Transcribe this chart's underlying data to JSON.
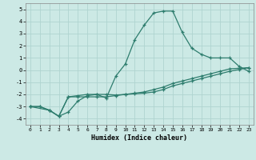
{
  "xlabel": "Humidex (Indice chaleur)",
  "background_color": "#cce9e5",
  "grid_color": "#b0d4d0",
  "line_color": "#2e7d6e",
  "xlim": [
    -0.5,
    23.5
  ],
  "ylim": [
    -4.5,
    5.5
  ],
  "yticks": [
    -4,
    -3,
    -2,
    -1,
    0,
    1,
    2,
    3,
    4,
    5
  ],
  "xticks": [
    0,
    1,
    2,
    3,
    4,
    5,
    6,
    7,
    8,
    9,
    10,
    11,
    12,
    13,
    14,
    15,
    16,
    17,
    18,
    19,
    20,
    21,
    22,
    23
  ],
  "line1_x": [
    0,
    1,
    2,
    3,
    4,
    5,
    6,
    7,
    8,
    9,
    10,
    11,
    12,
    13,
    14,
    15,
    16,
    17,
    18,
    19,
    20,
    21,
    22,
    23
  ],
  "line1_y": [
    -3.0,
    -3.0,
    -3.3,
    -3.8,
    -2.2,
    -2.1,
    -2.0,
    -2.0,
    -2.3,
    -0.5,
    0.5,
    2.5,
    3.7,
    4.7,
    4.85,
    4.85,
    3.1,
    1.8,
    1.3,
    1.0,
    1.0,
    1.0,
    0.3,
    -0.1
  ],
  "line2_x": [
    0,
    1,
    2,
    3,
    4,
    5,
    6,
    7,
    8,
    9,
    10,
    11,
    12,
    13,
    14,
    15,
    16,
    17,
    18,
    19,
    20,
    21,
    22,
    23
  ],
  "line2_y": [
    -3.0,
    -3.0,
    -3.3,
    -3.8,
    -2.2,
    -2.2,
    -2.2,
    -2.2,
    -2.2,
    -2.1,
    -2.0,
    -1.9,
    -1.8,
    -1.6,
    -1.4,
    -1.1,
    -0.9,
    -0.7,
    -0.5,
    -0.3,
    -0.1,
    0.1,
    0.15,
    0.2
  ],
  "line3_x": [
    0,
    2,
    3,
    4,
    5,
    6,
    7,
    8,
    9,
    10,
    11,
    12,
    13,
    14,
    15,
    16,
    17,
    18,
    19,
    20,
    21,
    22,
    23
  ],
  "line3_y": [
    -3.0,
    -3.3,
    -3.8,
    -3.45,
    -2.55,
    -2.1,
    -2.0,
    -2.0,
    -2.05,
    -2.0,
    -1.95,
    -1.9,
    -1.8,
    -1.6,
    -1.3,
    -1.1,
    -0.9,
    -0.7,
    -0.5,
    -0.3,
    -0.1,
    0.05,
    0.2
  ]
}
